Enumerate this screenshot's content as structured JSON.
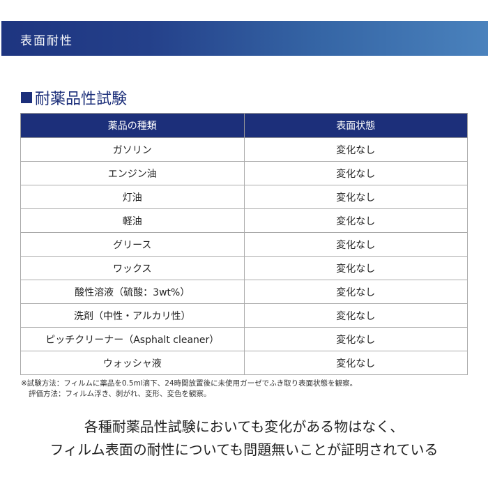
{
  "banner": {
    "title": "表面耐性"
  },
  "section": {
    "title": "耐薬品性試験"
  },
  "table": {
    "headers": [
      "薬品の種類",
      "表面状態"
    ],
    "rows": [
      [
        "ガソリン",
        "変化なし"
      ],
      [
        "エンジン油",
        "変化なし"
      ],
      [
        "灯油",
        "変化なし"
      ],
      [
        "軽油",
        "変化なし"
      ],
      [
        "グリース",
        "変化なし"
      ],
      [
        "ワックス",
        "変化なし"
      ],
      [
        "酸性溶液（硫酸：3wt%）",
        "変化なし"
      ],
      [
        "洗剤（中性・アルカリ性）",
        "変化なし"
      ],
      [
        "ピッチクリーナー（Asphalt cleaner）",
        "変化なし"
      ],
      [
        "ウォッシャ液",
        "変化なし"
      ]
    ]
  },
  "notes": [
    "※試験方法：フィルムに薬品を0.5ml滴下、24時間放置後に未使用ガーゼでふき取り表面状態を観察。",
    "評価方法：フィルム浮き、剥がれ、変形、変色を観察。"
  ],
  "conclusion": [
    "各種耐薬品性試験においても変化がある物はなく、",
    "フィルム表面の耐性についても問題無いことが証明されている"
  ],
  "colors": {
    "navy": "#1c2f7a"
  }
}
